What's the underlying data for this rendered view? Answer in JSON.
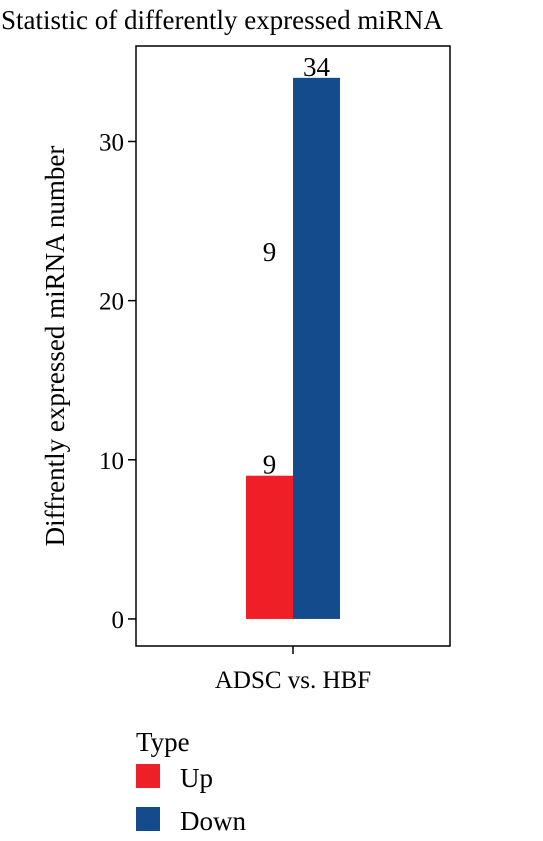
{
  "chart_data": {
    "type": "bar",
    "title": "Statistic of differently expressed miRNA",
    "xlabel": "",
    "ylabel": "Diffrently expressed miRNA number",
    "categories": [
      "ADSC vs. HBF"
    ],
    "series": [
      {
        "name": "Up",
        "values": [
          9
        ],
        "color": "#ee1f26"
      },
      {
        "name": "Down",
        "values": [
          34
        ],
        "color": "#134b8c"
      }
    ],
    "data_labels": [
      "9",
      "34"
    ],
    "stray_label": "9",
    "stray_label_value": 22.5,
    "yticks": [
      0,
      10,
      20,
      30
    ],
    "ylim": [
      -1.7,
      36
    ],
    "grid": false,
    "legend": {
      "title": "Type",
      "placement": "bottom-left",
      "items": [
        "Up",
        "Down"
      ]
    }
  }
}
